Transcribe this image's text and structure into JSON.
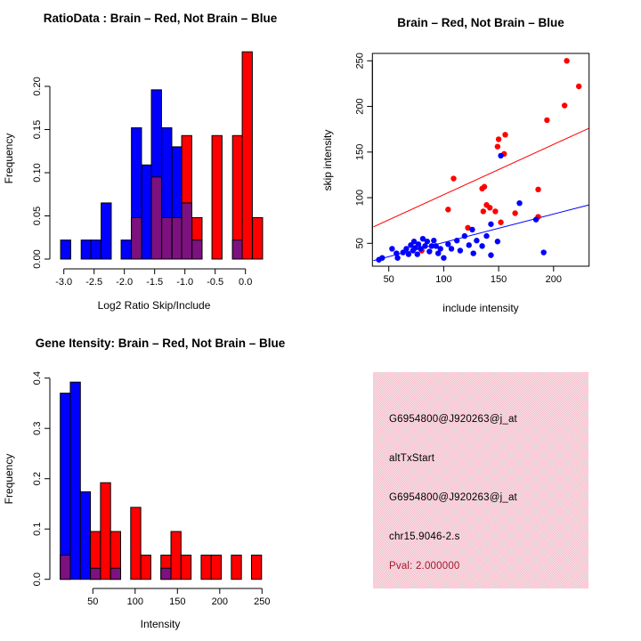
{
  "palette": {
    "brain_red": "#ff0000",
    "not_brain_blue": "#0000ff",
    "overlap_purple": "#7d1180",
    "axis_black": "#000000",
    "pval_dark_red": "#a11830",
    "info_box_pink": "#f4bfcc",
    "background": "#ffffff"
  },
  "chart_data": [
    {
      "id": "ratio_histogram",
      "type": "bar",
      "title": "RatioData : Brain – Red, Not Brain – Blue",
      "xlabel": "Log2 Ratio Skip/Include",
      "ylabel": "Frequency",
      "xlim": [
        -3.25,
        0.35
      ],
      "ylim": [
        0,
        0.24
      ],
      "x_ticks": [
        {
          "v": -3.0,
          "label": "-3.0"
        },
        {
          "v": -2.5,
          "label": "-2.5"
        },
        {
          "v": -2.0,
          "label": "-2.0"
        },
        {
          "v": -1.5,
          "label": "-1.5"
        },
        {
          "v": -1.0,
          "label": "-1.0"
        },
        {
          "v": -0.5,
          "label": "-0.5"
        },
        {
          "v": 0.0,
          "label": "0.0"
        }
      ],
      "y_ticks": [
        {
          "v": 0,
          "label": "0.00"
        },
        {
          "v": 0.05,
          "label": "0.05"
        },
        {
          "v": 0.1,
          "label": "0.10"
        },
        {
          "v": 0.15,
          "label": "0.15"
        },
        {
          "v": 0.2,
          "label": "0.20"
        }
      ],
      "bin_width": 0.1666,
      "series_legend": {
        "red": "Brain",
        "blue": "Not Brain"
      },
      "bins": [
        {
          "x": -2.97,
          "blue": 0.022,
          "red": 0
        },
        {
          "x": -2.63,
          "blue": 0.022,
          "red": 0
        },
        {
          "x": -2.47,
          "blue": 0.022,
          "red": 0
        },
        {
          "x": -2.3,
          "blue": 0.065,
          "red": 0
        },
        {
          "x": -1.97,
          "blue": 0.022,
          "red": 0
        },
        {
          "x": -1.8,
          "blue": 0.152,
          "red": 0.048
        },
        {
          "x": -1.63,
          "blue": 0.109,
          "red": 0
        },
        {
          "x": -1.47,
          "blue": 0.196,
          "red": 0.095
        },
        {
          "x": -1.3,
          "blue": 0.152,
          "red": 0.048
        },
        {
          "x": -1.13,
          "blue": 0.13,
          "red": 0.048
        },
        {
          "x": -0.97,
          "blue": 0.065,
          "red": 0.143
        },
        {
          "x": -0.8,
          "blue": 0.022,
          "red": 0.048
        },
        {
          "x": -0.47,
          "blue": 0,
          "red": 0.143
        },
        {
          "x": -0.13,
          "blue": 0.022,
          "red": 0.143
        },
        {
          "x": 0.03,
          "blue": 0,
          "red": 0.24
        },
        {
          "x": 0.2,
          "blue": 0,
          "red": 0.048
        }
      ]
    },
    {
      "id": "intensity_scatter",
      "type": "scatter",
      "title": "Brain – Red, Not Brain – Blue",
      "xlabel": "include intensity",
      "ylabel": "skip intensity",
      "xlim": [
        35,
        232
      ],
      "ylim": [
        25,
        258
      ],
      "x_ticks": [
        {
          "v": 50,
          "label": "50"
        },
        {
          "v": 100,
          "label": "100"
        },
        {
          "v": 150,
          "label": "150"
        },
        {
          "v": 200,
          "label": "200"
        }
      ],
      "y_ticks": [
        {
          "v": 50,
          "label": "50"
        },
        {
          "v": 100,
          "label": "100"
        },
        {
          "v": 150,
          "label": "150"
        },
        {
          "v": 200,
          "label": "200"
        },
        {
          "v": 250,
          "label": "250"
        }
      ],
      "series": [
        {
          "name": "Brain",
          "color": "red",
          "points": [
            [
              212,
              250
            ],
            [
              223,
              222
            ],
            [
              210,
              201
            ],
            [
              194,
              185
            ],
            [
              156,
              169
            ],
            [
              150,
              164
            ],
            [
              149,
              156
            ],
            [
              155,
              148
            ],
            [
              109,
              121
            ],
            [
              135,
              110
            ],
            [
              137,
              112
            ],
            [
              186,
              109
            ],
            [
              139,
              92
            ],
            [
              142,
              89
            ],
            [
              136,
              85
            ],
            [
              147,
              85
            ],
            [
              104,
              87
            ],
            [
              165,
              83
            ],
            [
              186,
              79
            ],
            [
              152,
              73
            ],
            [
              122,
              67
            ],
            [
              80,
              42
            ]
          ]
        },
        {
          "name": "Not Brain",
          "color": "blue",
          "points": [
            [
              41,
              32
            ],
            [
              44,
              34
            ],
            [
              53,
              44
            ],
            [
              57,
              39
            ],
            [
              58,
              34
            ],
            [
              63,
              40
            ],
            [
              66,
              44
            ],
            [
              68,
              38
            ],
            [
              70,
              48
            ],
            [
              72,
              42
            ],
            [
              73,
              52
            ],
            [
              74,
              45
            ],
            [
              76,
              38
            ],
            [
              77,
              49
            ],
            [
              79,
              44
            ],
            [
              81,
              55
            ],
            [
              83,
              47
            ],
            [
              85,
              52
            ],
            [
              87,
              41
            ],
            [
              89,
              47
            ],
            [
              91,
              53
            ],
            [
              93,
              47
            ],
            [
              95,
              39
            ],
            [
              97,
              44
            ],
            [
              100,
              34
            ],
            [
              104,
              49
            ],
            [
              107,
              44
            ],
            [
              112,
              53
            ],
            [
              115,
              42
            ],
            [
              119,
              58
            ],
            [
              123,
              48
            ],
            [
              127,
              39
            ],
            [
              130,
              53
            ],
            [
              135,
              47
            ],
            [
              139,
              58
            ],
            [
              143,
              37
            ],
            [
              149,
              52
            ],
            [
              143,
              71
            ],
            [
              126,
              65
            ],
            [
              152,
              146
            ],
            [
              169,
              94
            ],
            [
              184,
              76
            ],
            [
              191,
              40
            ]
          ]
        }
      ],
      "lines": [
        {
          "name": "brain-fit-line",
          "color": "red",
          "from": [
            36,
            68
          ],
          "to": [
            232,
            176
          ]
        },
        {
          "name": "not-brain-fit-line",
          "color": "blue",
          "from": [
            36,
            31
          ],
          "to": [
            232,
            92
          ]
        }
      ]
    },
    {
      "id": "gene_intensity_histogram",
      "type": "bar",
      "title": "Gene Itensity: Brain – Red, Not Brain – Blue",
      "xlabel": "Intensity",
      "ylabel": "Frequency",
      "xlim": [
        8,
        258
      ],
      "ylim": [
        0,
        0.4
      ],
      "x_ticks": [
        {
          "v": 50,
          "label": "50"
        },
        {
          "v": 100,
          "label": "100"
        },
        {
          "v": 150,
          "label": "150"
        },
        {
          "v": 200,
          "label": "200"
        },
        {
          "v": 250,
          "label": "250"
        }
      ],
      "y_ticks": [
        {
          "v": 0,
          "label": "0.0"
        },
        {
          "v": 0.1,
          "label": "0.1"
        },
        {
          "v": 0.2,
          "label": "0.2"
        },
        {
          "v": 0.3,
          "label": "0.3"
        },
        {
          "v": 0.4,
          "label": "0.4"
        }
      ],
      "bin_width": 11.9,
      "series_legend": {
        "red": "Brain",
        "blue": "Not Brain"
      },
      "bins": [
        {
          "x": 17.4,
          "blue": 0.37,
          "red": 0.048
        },
        {
          "x": 29.3,
          "blue": 0.392,
          "red": 0
        },
        {
          "x": 41.2,
          "blue": 0.174,
          "red": 0
        },
        {
          "x": 53.1,
          "blue": 0.022,
          "red": 0.095
        },
        {
          "x": 65.0,
          "blue": 0,
          "red": 0.192
        },
        {
          "x": 76.9,
          "blue": 0.022,
          "red": 0.095
        },
        {
          "x": 100.7,
          "blue": 0,
          "red": 0.143
        },
        {
          "x": 112.6,
          "blue": 0,
          "red": 0.048
        },
        {
          "x": 136.4,
          "blue": 0.022,
          "red": 0.048
        },
        {
          "x": 148.3,
          "blue": 0,
          "red": 0.095
        },
        {
          "x": 160.2,
          "blue": 0,
          "red": 0.048
        },
        {
          "x": 184.0,
          "blue": 0,
          "red": 0.048
        },
        {
          "x": 195.9,
          "blue": 0,
          "red": 0.048
        },
        {
          "x": 219.7,
          "blue": 0,
          "red": 0.048
        },
        {
          "x": 243.5,
          "blue": 0,
          "red": 0.048
        }
      ]
    }
  ],
  "info_panel": {
    "bg": "#f4bfcc",
    "lines": [
      {
        "text": "G6954800@J920263@j_at",
        "color": "black"
      },
      {
        "text": "altTxStart",
        "color": "black"
      },
      {
        "text": "G6954800@J920263@j_at",
        "color": "black"
      },
      {
        "text": "chr15.9046-2.s",
        "color": "black"
      },
      {
        "text": "Pval: 2.000000",
        "color": "dark_red"
      }
    ]
  }
}
